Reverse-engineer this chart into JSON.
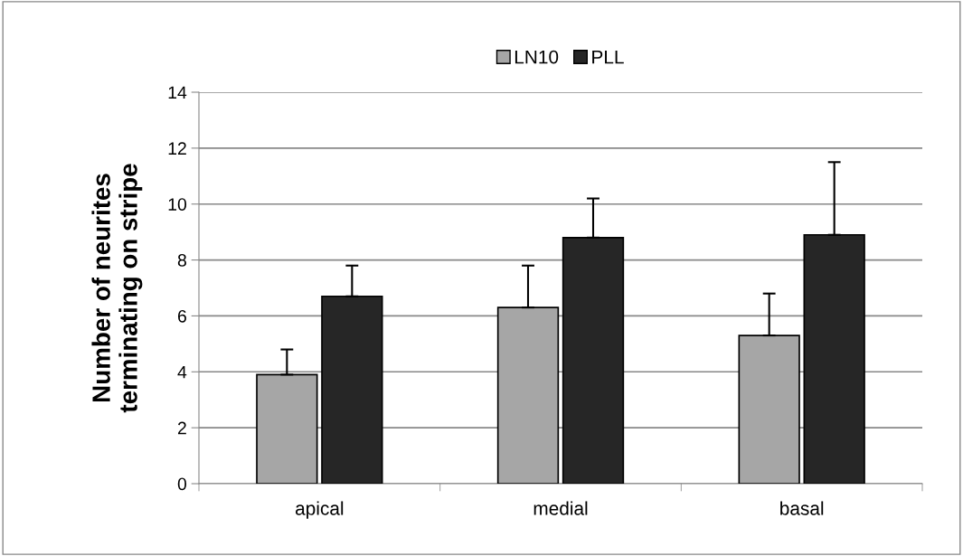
{
  "chart_data": {
    "type": "bar",
    "ylabel": "Number of neurites\nterminating on stripe",
    "categories": [
      "apical",
      "medial",
      "basal"
    ],
    "series": [
      {
        "name": "LN10",
        "color": "#a6a6a6",
        "values": [
          3.9,
          6.3,
          5.3
        ],
        "errors": [
          [
            3.9,
            4.8
          ],
          [
            6.3,
            7.8
          ],
          [
            5.3,
            6.8
          ]
        ]
      },
      {
        "name": "PLL",
        "color": "#262626",
        "values": [
          6.7,
          8.8,
          8.9
        ],
        "errors": [
          [
            6.7,
            7.8
          ],
          [
            8.8,
            10.2
          ],
          [
            8.9,
            11.5
          ]
        ]
      }
    ],
    "ylim": [
      0,
      14
    ],
    "yticks": [
      0,
      2,
      4,
      6,
      8,
      10,
      12,
      14
    ],
    "grid": "y",
    "legend": "top"
  }
}
